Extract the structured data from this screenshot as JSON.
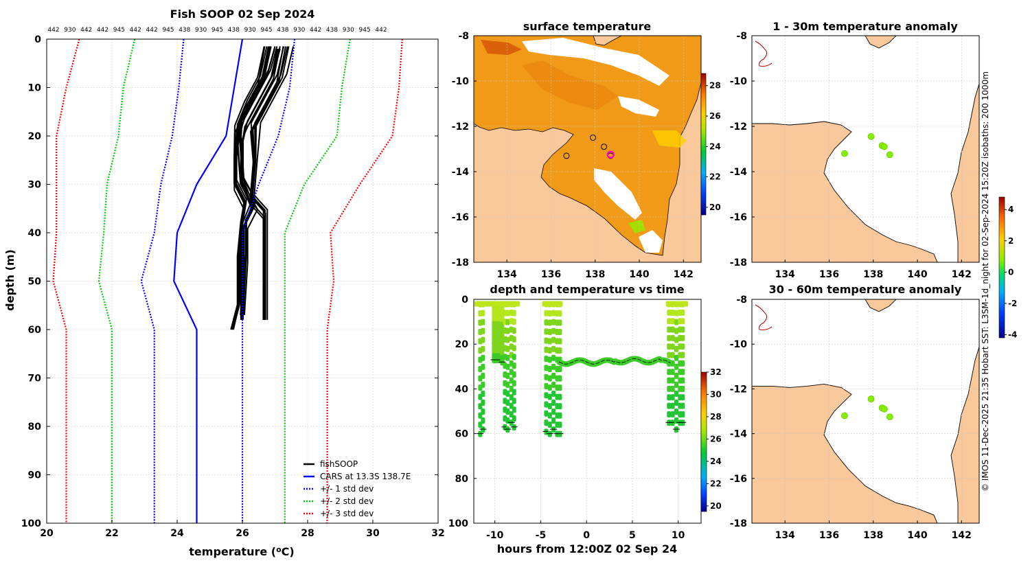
{
  "figure": {
    "credit": "© IMOS 11-Dec-2025 21:35 Hobart SST: L3SM-1d_night for 02-Sep-2024 15:20Z isobaths: 200  1000m"
  },
  "colors": {
    "land": "#fac99b",
    "profile": "#000000",
    "cars": "#0000ff",
    "std1": "#0000ff",
    "std2": "#00cc00",
    "std3": "#ff0000"
  },
  "chart_data": [
    {
      "id": "profile",
      "type": "line",
      "title": "Fish SOOP 02 Sep 2024",
      "xlabel": "temperature (°C)",
      "ylabel": "depth (m)",
      "xlim": [
        20,
        32
      ],
      "ylim": [
        100,
        0
      ],
      "xticks": [
        "20",
        "22",
        "24",
        "26",
        "28",
        "30",
        "32"
      ],
      "yticks": [
        "0",
        "10",
        "20",
        "30",
        "40",
        "50",
        "60",
        "70",
        "80",
        "90",
        "100"
      ],
      "top_labels": [
        "442",
        "930",
        "442",
        "442",
        "945",
        "442",
        "442",
        "945",
        "438",
        "930",
        "945",
        "438",
        "930",
        "945",
        "438",
        "930",
        "442",
        "438",
        "930",
        "945",
        "442"
      ],
      "legend": [
        "fishSOOP",
        "CARS at 13.3S 138.7E",
        "+/- 1 std dev",
        "+/- 2 std dev",
        "+/- 3 std dev"
      ],
      "series": [
        {
          "name": "CARS at 13.3S 138.7E",
          "style": "solid",
          "color": "#0000ff",
          "depth": [
            0,
            10,
            20,
            30,
            40,
            50,
            60,
            100
          ],
          "temp": [
            26.0,
            25.75,
            25.5,
            24.6,
            24.0,
            23.9,
            24.6,
            24.6
          ]
        },
        {
          "name": "-1 std",
          "style": "dot",
          "color": "#0000ff",
          "depth": [
            0,
            10,
            20,
            30,
            40,
            50,
            60,
            100
          ],
          "temp": [
            24.2,
            24.05,
            23.85,
            23.5,
            23.3,
            22.9,
            23.3,
            23.3
          ]
        },
        {
          "name": "+1 std",
          "style": "dot",
          "color": "#0000ff",
          "depth": [
            0,
            10,
            20,
            30,
            40,
            50,
            60,
            100
          ],
          "temp": [
            27.6,
            27.45,
            27.1,
            26.5,
            26.0,
            26.0,
            26.0,
            26.0
          ]
        },
        {
          "name": "-2 std",
          "style": "dot",
          "color": "#00cc00",
          "depth": [
            0,
            10,
            20,
            30,
            40,
            50,
            60,
            100
          ],
          "temp": [
            22.7,
            22.35,
            22.2,
            21.85,
            21.75,
            21.6,
            22.0,
            22.0
          ]
        },
        {
          "name": "+2 std",
          "style": "dot",
          "color": "#00cc00",
          "depth": [
            0,
            10,
            20,
            30,
            40,
            50,
            60,
            100
          ],
          "temp": [
            29.3,
            29.05,
            28.9,
            27.9,
            27.3,
            27.3,
            27.3,
            27.3
          ]
        },
        {
          "name": "-3 std",
          "style": "dot",
          "color": "#ff0000",
          "depth": [
            0,
            10,
            20,
            30,
            40,
            50,
            60,
            100
          ],
          "temp": [
            21.0,
            20.6,
            20.3,
            20.3,
            20.3,
            20.2,
            20.6,
            20.6
          ]
        },
        {
          "name": "+3 std",
          "style": "dot",
          "color": "#ff0000",
          "depth": [
            0,
            10,
            20,
            30,
            40,
            50,
            60,
            100
          ],
          "temp": [
            30.9,
            30.8,
            30.6,
            29.6,
            28.7,
            28.8,
            28.6,
            28.6
          ]
        },
        {
          "name": "fishSOOP",
          "style": "solid",
          "color": "#000000",
          "depth": [
            1.5,
            8,
            13,
            18,
            25,
            30,
            34,
            38,
            45,
            55,
            60
          ],
          "temp": [
            26.8,
            26.6,
            26.2,
            25.9,
            25.8,
            25.8,
            26.1,
            26.0,
            25.9,
            25.9,
            25.7
          ]
        },
        {
          "name": "fishSOOP",
          "style": "solid",
          "color": "#000000",
          "depth": [
            1.5,
            8,
            13,
            18,
            25,
            33,
            36,
            40,
            50,
            58
          ],
          "temp": [
            27.4,
            27.2,
            26.8,
            26.4,
            26.4,
            26.3,
            26.7,
            26.7,
            26.7,
            26.7
          ]
        },
        {
          "name": "fishSOOP",
          "style": "solid",
          "color": "#000000",
          "depth": [
            2,
            8,
            13,
            18,
            22,
            30,
            35,
            40,
            50,
            58
          ],
          "temp": [
            27.1,
            26.9,
            26.5,
            26.1,
            26.0,
            26.0,
            26.3,
            26.0,
            26.0,
            26.0
          ]
        },
        {
          "name": "fishSOOP",
          "style": "solid",
          "color": "#000000",
          "depth": [
            1.5,
            7,
            12,
            17,
            20,
            29,
            34,
            38,
            45,
            57
          ],
          "temp": [
            27.0,
            26.8,
            26.4,
            26.0,
            25.9,
            26.0,
            26.4,
            26.1,
            26.1,
            26.0
          ]
        }
      ]
    },
    {
      "id": "sst-map",
      "type": "heatmap",
      "title": "surface temperature",
      "xlim": [
        132.5,
        142.8
      ],
      "ylim": [
        -18,
        -8
      ],
      "xticks": [
        "134",
        "136",
        "138",
        "140",
        "142"
      ],
      "yticks": [
        "-8",
        "-10",
        "-12",
        "-14",
        "-16",
        "-18"
      ],
      "colorbar": {
        "min": 19.5,
        "max": 28.8,
        "ticks": [
          "20",
          "22",
          "24",
          "26",
          "28"
        ]
      },
      "stations": [
        {
          "lon": 136.7,
          "lat": -13.3
        },
        {
          "lon": 137.9,
          "lat": -12.5
        },
        {
          "lon": 138.4,
          "lat": -12.9
        },
        {
          "lon": 138.7,
          "lat": -13.3
        }
      ],
      "current": {
        "lon": 138.7,
        "lat": -13.25
      }
    },
    {
      "id": "depth-time",
      "type": "scatter",
      "title": "depth and temperature vs time",
      "xlabel": "hours from 12:00Z 02 Sep 24",
      "xlim": [
        -12.3,
        12.5
      ],
      "ylim": [
        100,
        0
      ],
      "xticks": [
        "-10",
        "-5",
        "0",
        "5",
        "10"
      ],
      "yticks": [
        "0",
        "20",
        "40",
        "60",
        "80",
        "100"
      ],
      "colorbar": {
        "min": 19.5,
        "max": 32,
        "ticks": [
          "20",
          "22",
          "24",
          "26",
          "28",
          "30",
          "32"
        ]
      }
    },
    {
      "id": "anom-1-30",
      "type": "scatter",
      "title": "1 - 30m temperature anomaly",
      "xlim": [
        132.5,
        142.8
      ],
      "ylim": [
        -18,
        -8
      ],
      "xticks": [
        "134",
        "136",
        "138",
        "140",
        "142"
      ],
      "yticks": [
        "-8",
        "-10",
        "-12",
        "-14",
        "-16",
        "-18"
      ],
      "points": [
        {
          "lon": 136.7,
          "lat": -13.2,
          "value": 0.3
        },
        {
          "lon": 137.9,
          "lat": -12.45,
          "value": 0.4
        },
        {
          "lon": 138.4,
          "lat": -12.85,
          "value": 0.3
        },
        {
          "lon": 138.5,
          "lat": -12.9,
          "value": 0.3
        },
        {
          "lon": 138.75,
          "lat": -13.25,
          "value": 0.4
        }
      ]
    },
    {
      "id": "anom-30-60",
      "type": "scatter",
      "title": "30 - 60m temperature anomaly",
      "xlim": [
        132.5,
        142.8
      ],
      "ylim": [
        -18,
        -8
      ],
      "xticks": [
        "134",
        "136",
        "138",
        "140",
        "142"
      ],
      "yticks": [
        "-8",
        "-10",
        "-12",
        "-14",
        "-16",
        "-18"
      ],
      "points": [
        {
          "lon": 136.7,
          "lat": -13.2,
          "value": 0.4
        },
        {
          "lon": 137.9,
          "lat": -12.45,
          "value": 0.5
        },
        {
          "lon": 138.4,
          "lat": -12.85,
          "value": 0.4
        },
        {
          "lon": 138.5,
          "lat": -12.9,
          "value": 0.4
        },
        {
          "lon": 138.75,
          "lat": -13.25,
          "value": 0.5
        }
      ]
    },
    {
      "id": "anom-colorbar",
      "type": "heatmap",
      "colorbar": {
        "min": -4.2,
        "max": 4.8,
        "ticks": [
          "4",
          "2",
          "0",
          "-2",
          "-4"
        ]
      }
    }
  ]
}
